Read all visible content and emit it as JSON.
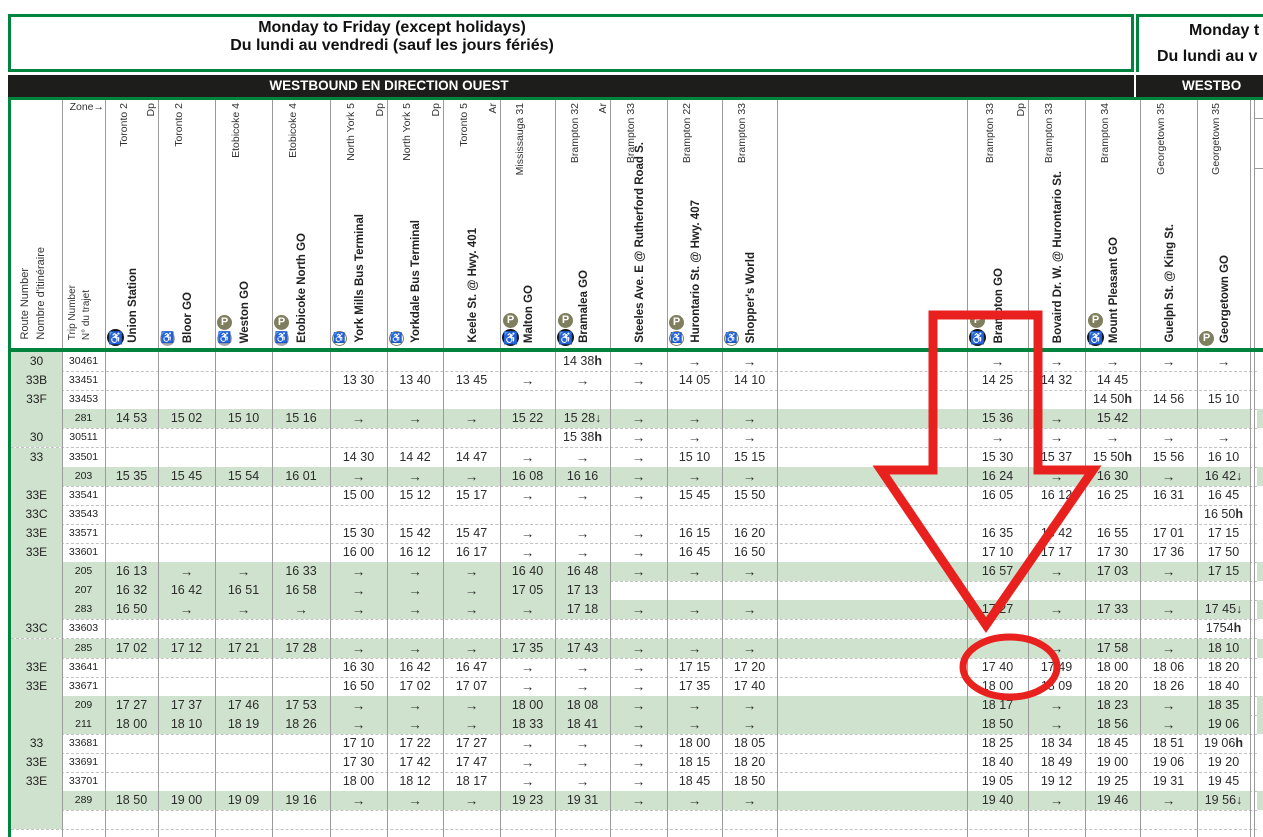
{
  "panel": {
    "title_line1": "Monday to Friday (except holidays)",
    "title_line2": "Du lundi au vendredi (sauf les jours fériés)",
    "direction_band": "WESTBOUND EN DIRECTION OUEST"
  },
  "second_panel": {
    "title_line1": "Monday t",
    "title_line2": "Du lundi au v",
    "direction_band": "WESTBO"
  },
  "corner": {
    "route_label_en": "Route Number",
    "route_label_fr": "Nombre d'itinéraire",
    "trip_label_en": "Trip Number",
    "trip_label_fr": "N° du trajet",
    "zone_label": "Zone→"
  },
  "colors": {
    "brand_green": "#00843D",
    "highlight_green": "#cfe2cd",
    "band_black": "#1d1d1b",
    "icon_olive": "#7f7e5e",
    "annotation_red": "#e8211f"
  },
  "columns": [
    {
      "station": "Union Station",
      "zone": "Toronto 2",
      "marker": "Dp",
      "icons": [
        "wheelchair-black-icon"
      ]
    },
    {
      "station": "Bloor GO",
      "zone": "Toronto 2",
      "marker": "",
      "icons": [
        "wheelchair-gray-icon"
      ]
    },
    {
      "station": "Weston GO",
      "zone": "Etobicoke 4",
      "marker": "",
      "icons": [
        "parking-icon",
        "wheelchair-gray-icon"
      ]
    },
    {
      "station": "Etobicoke North GO",
      "zone": "Etobicoke 4",
      "marker": "",
      "icons": [
        "parking-icon",
        "wheelchair-gray-icon"
      ]
    },
    {
      "station": "York Mills Bus Terminal",
      "zone": "North York 5",
      "marker": "Dp",
      "icons": [
        "wheelchair-outline-icon"
      ]
    },
    {
      "station": "Yorkdale Bus Terminal",
      "zone": "North York 5",
      "marker": "Dp",
      "icons": [
        "wheelchair-outline-icon"
      ]
    },
    {
      "station": "Keele St. @ Hwy. 401",
      "zone": "Toronto 5",
      "marker": "Ar",
      "icons": []
    },
    {
      "station": "Malton GO",
      "zone": "Mississauga 31",
      "marker": "",
      "icons": [
        "parking-icon",
        "wheelchair-black-icon"
      ]
    },
    {
      "station": "Bramalea GO",
      "zone": "Brampton 32",
      "marker": "Ar",
      "icons": [
        "parking-icon",
        "wheelchair-black-icon"
      ]
    },
    {
      "station": "Steeles Ave. E @ Rutherford Road S.",
      "zone": "Brampton 33",
      "marker": "",
      "icons": []
    },
    {
      "station": "Hurontario St. @ Hwy. 407",
      "zone": "Brampton 22",
      "marker": "",
      "icons": [
        "parking-icon",
        "wheelchair-outline-icon"
      ]
    },
    {
      "station": "Shopper's World",
      "zone": "Brampton 33",
      "marker": "",
      "icons": [
        "wheelchair-outline-icon"
      ]
    },
    {
      "station": "Brampton GO",
      "zone": "Brampton 33",
      "marker": "Dp",
      "icons": [
        "parking-icon",
        "wheelchair-black-icon"
      ]
    },
    {
      "station": "Bovaird Dr. W. @ Hurontario St.",
      "zone": "Brampton 33",
      "marker": "",
      "icons": []
    },
    {
      "station": "Mount Pleasant GO",
      "zone": "Brampton 34",
      "marker": "",
      "icons": [
        "parking-icon",
        "wheelchair-black-icon"
      ]
    },
    {
      "station": "Guelph St. @ King St.",
      "zone": "Georgetown 35",
      "marker": "",
      "icons": []
    },
    {
      "station": "Georgetown GO",
      "zone": "Georgetown 35",
      "marker": "",
      "icons": [
        "parking-icon"
      ]
    }
  ],
  "rows": [
    {
      "route": "30",
      "trip": "30461",
      "highlight": false,
      "times": [
        "",
        "",
        "",
        "",
        "",
        "",
        "",
        "",
        "14 38h",
        "→",
        "→",
        "→",
        "→",
        "→",
        "→",
        "→",
        "→"
      ]
    },
    {
      "route": "33B",
      "trip": "33451",
      "highlight": false,
      "times": [
        "",
        "",
        "",
        "",
        "13 30",
        "13 40",
        "13 45",
        "→",
        "→",
        "→",
        "14 05",
        "14 10",
        "14 25",
        "14 32",
        "14 45",
        "",
        ""
      ]
    },
    {
      "route": "33F",
      "trip": "33453",
      "highlight": false,
      "times": [
        "",
        "",
        "",
        "",
        "",
        "",
        "",
        "",
        "",
        "",
        "",
        "",
        "",
        "",
        "14 50h",
        "14 56",
        "15 10"
      ]
    },
    {
      "route": "",
      "trip": "281",
      "highlight": true,
      "times": [
        "14 53",
        "15 02",
        "15 10",
        "15 16",
        "→",
        "→",
        "→",
        "15 22",
        "15 28↓",
        "→",
        "→",
        "→",
        "15 36",
        "→",
        "15 42",
        "",
        ""
      ]
    },
    {
      "route": "30",
      "trip": "30511",
      "highlight": false,
      "times": [
        "",
        "",
        "",
        "",
        "",
        "",
        "",
        "",
        "15 38h",
        "→",
        "→",
        "→",
        "→",
        "→",
        "→",
        "→",
        "→"
      ]
    },
    {
      "route": "33",
      "trip": "33501",
      "highlight": false,
      "times": [
        "",
        "",
        "",
        "",
        "14 30",
        "14 42",
        "14 47",
        "→",
        "→",
        "→",
        "15 10",
        "15 15",
        "15 30",
        "15 37",
        "15 50h",
        "15 56",
        "16 10"
      ]
    },
    {
      "route": "",
      "trip": "203",
      "highlight": true,
      "times": [
        "15 35",
        "15 45",
        "15 54",
        "16 01",
        "→",
        "→",
        "→",
        "16 08",
        "16 16",
        "→",
        "→",
        "→",
        "16 24",
        "→",
        "16 30",
        "→",
        "16 42↓"
      ]
    },
    {
      "route": "33E",
      "trip": "33541",
      "highlight": false,
      "times": [
        "",
        "",
        "",
        "",
        "15 00",
        "15 12",
        "15 17",
        "→",
        "→",
        "→",
        "15 45",
        "15 50",
        "16 05",
        "16 12",
        "16 25",
        "16 31",
        "16 45"
      ]
    },
    {
      "route": "33C",
      "trip": "33543",
      "highlight": false,
      "times": [
        "",
        "",
        "",
        "",
        "",
        "",
        "",
        "",
        "",
        "",
        "",
        "",
        "",
        "",
        "",
        "",
        "16 50h"
      ]
    },
    {
      "route": "33E",
      "trip": "33571",
      "highlight": false,
      "times": [
        "",
        "",
        "",
        "",
        "15 30",
        "15 42",
        "15 47",
        "→",
        "→",
        "→",
        "16 15",
        "16 20",
        "16 35",
        "16 42",
        "16 55",
        "17 01",
        "17 15"
      ]
    },
    {
      "route": "33E",
      "trip": "33601",
      "highlight": false,
      "times": [
        "",
        "",
        "",
        "",
        "16 00",
        "16 12",
        "16 17",
        "→",
        "→",
        "→",
        "16 45",
        "16 50",
        "17 10",
        "17 17",
        "17 30",
        "17 36",
        "17 50"
      ]
    },
    {
      "route": "",
      "trip": "205",
      "highlight": true,
      "times": [
        "16 13",
        "→",
        "→",
        "16 33",
        "→",
        "→",
        "→",
        "16 40",
        "16 48",
        "→",
        "→",
        "→",
        "16 57",
        "→",
        "17 03",
        "→",
        "17 15"
      ]
    },
    {
      "route": "",
      "trip": "207",
      "highlight": true,
      "highlight_cols": 9,
      "times": [
        "16 32",
        "16 42",
        "16 51",
        "16 58",
        "→",
        "→",
        "→",
        "17 05",
        "17 13",
        "",
        "",
        "",
        "",
        "",
        "",
        "",
        ""
      ]
    },
    {
      "route": "",
      "trip": "283",
      "highlight": true,
      "times": [
        "16 50",
        "→",
        "→",
        "→",
        "→",
        "→",
        "→",
        "→",
        "17 18",
        "→",
        "→",
        "→",
        "17 27",
        "→",
        "17 33",
        "→",
        "17 45↓"
      ]
    },
    {
      "route": "33C",
      "trip": "33603",
      "highlight": false,
      "times": [
        "",
        "",
        "",
        "",
        "",
        "",
        "",
        "",
        "",
        "",
        "",
        "",
        "",
        "",
        "",
        "",
        "1754h"
      ]
    },
    {
      "route": "",
      "trip": "285",
      "highlight": true,
      "times": [
        "17 02",
        "17 12",
        "17 21",
        "17 28",
        "→",
        "→",
        "→",
        "17 35",
        "17 43",
        "→",
        "→",
        "→",
        "",
        "→",
        "17 58",
        "→",
        "18 10"
      ]
    },
    {
      "route": "33E",
      "trip": "33641",
      "highlight": false,
      "times": [
        "",
        "",
        "",
        "",
        "16 30",
        "16 42",
        "16 47",
        "→",
        "→",
        "→",
        "17 15",
        "17 20",
        "17 40",
        "17 49",
        "18 00",
        "18 06",
        "18 20"
      ]
    },
    {
      "route": "33E",
      "trip": "33671",
      "highlight": false,
      "times": [
        "",
        "",
        "",
        "",
        "16 50",
        "17 02",
        "17 07",
        "→",
        "→",
        "→",
        "17 35",
        "17 40",
        "18 00",
        "18 09",
        "18 20",
        "18 26",
        "18 40"
      ]
    },
    {
      "route": "",
      "trip": "209",
      "highlight": true,
      "times": [
        "17 27",
        "17 37",
        "17 46",
        "17 53",
        "→",
        "→",
        "→",
        "18 00",
        "18 08",
        "→",
        "→",
        "→",
        "18 17",
        "→",
        "18 23",
        "→",
        "18 35"
      ]
    },
    {
      "route": "",
      "trip": "211",
      "highlight": true,
      "times": [
        "18 00",
        "18 10",
        "18 19",
        "18 26",
        "→",
        "→",
        "→",
        "18 33",
        "18 41",
        "→",
        "→",
        "→",
        "18 50",
        "→",
        "18 56",
        "→",
        "19 06"
      ]
    },
    {
      "route": "33",
      "trip": "33681",
      "highlight": false,
      "times": [
        "",
        "",
        "",
        "",
        "17 10",
        "17 22",
        "17 27",
        "→",
        "→",
        "→",
        "18 00",
        "18 05",
        "18 25",
        "18 34",
        "18 45",
        "18 51",
        "19 06h"
      ]
    },
    {
      "route": "33E",
      "trip": "33691",
      "highlight": false,
      "times": [
        "",
        "",
        "",
        "",
        "17 30",
        "17 42",
        "17 47",
        "→",
        "→",
        "→",
        "18 15",
        "18 20",
        "18 40",
        "18 49",
        "19 00",
        "19 06",
        "19 20"
      ]
    },
    {
      "route": "33E",
      "trip": "33701",
      "highlight": false,
      "times": [
        "",
        "",
        "",
        "",
        "18 00",
        "18 12",
        "18 17",
        "→",
        "→",
        "→",
        "18 45",
        "18 50",
        "19 05",
        "19 12",
        "19 25",
        "19 31",
        "19 45"
      ]
    },
    {
      "route": "",
      "trip": "289",
      "highlight": true,
      "times": [
        "18 50",
        "19 00",
        "19 09",
        "19 16",
        "→",
        "→",
        "→",
        "19 23",
        "19 31",
        "→",
        "→",
        "→",
        "19 40",
        "→",
        "19 46",
        "→",
        "19 56↓"
      ]
    },
    {
      "route": "",
      "trip": "",
      "highlight": false,
      "times": [
        "",
        "",
        "",
        "",
        "",
        "",
        "",
        "",
        "",
        "",
        "",
        "",
        "",
        "",
        "",
        "",
        ""
      ]
    }
  ]
}
